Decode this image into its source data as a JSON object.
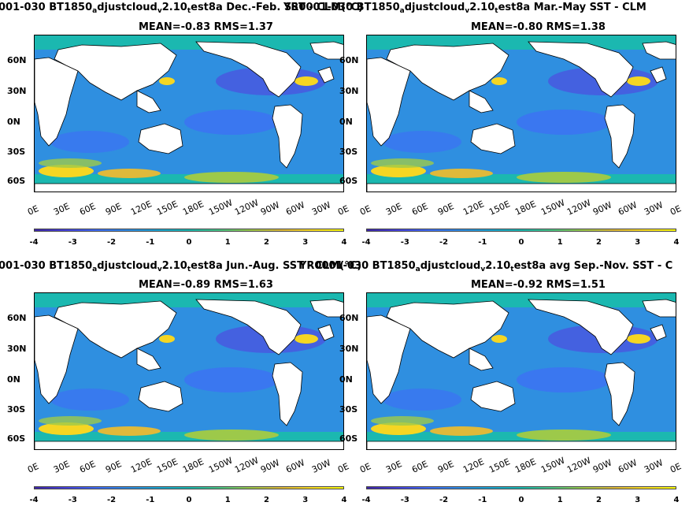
{
  "panels": [
    {
      "title_parts": [
        "001-030 BT1850",
        "a",
        "djustcloud",
        "v",
        "2.10",
        "t",
        "est8a  Dec.-Feb. SST - CLM(°C)"
      ],
      "stats": "MEAN=-0.83   RMS=1.37"
    },
    {
      "title_parts": [
        "YR0001-030 BT1850",
        "a",
        "djustcloud",
        "v",
        "2.10",
        "t",
        "est8a Mar.-May SST - CLM"
      ],
      "stats": "MEAN=-0.80   RMS=1.38"
    },
    {
      "title_parts": [
        "001-030 BT1850",
        "a",
        "djustcloud",
        "v",
        "2.10",
        "t",
        "est8a Jun.-Aug. SST - CLM(°C)"
      ],
      "stats": "MEAN=-0.89   RMS=1.63"
    },
    {
      "title_parts": [
        "YR0001-030 BT1850",
        "a",
        "djustcloud",
        "v",
        "2.10",
        "t",
        "est8a avg Sep.-Nov. SST - C"
      ],
      "stats": "MEAN=-0.92   RMS=1.51"
    }
  ],
  "lat_labels": [
    "60N",
    "30N",
    "0N",
    "30S",
    "60S"
  ],
  "lon_labels": [
    "0E",
    "30E",
    "60E",
    "90E",
    "120E",
    "150E",
    "180E",
    "150W",
    "120W",
    "90W",
    "60W",
    "30W",
    "0E"
  ],
  "colorbar_ticks": [
    "-4",
    "-3",
    "-2",
    "-1",
    "0",
    "1",
    "2",
    "3",
    "4"
  ],
  "colors": {
    "ocean_base": "#2f8fe0",
    "land": "#ffffff",
    "cold": "#3d2fb0",
    "warm": "#f5d623",
    "polar": "#1bb8b0"
  }
}
